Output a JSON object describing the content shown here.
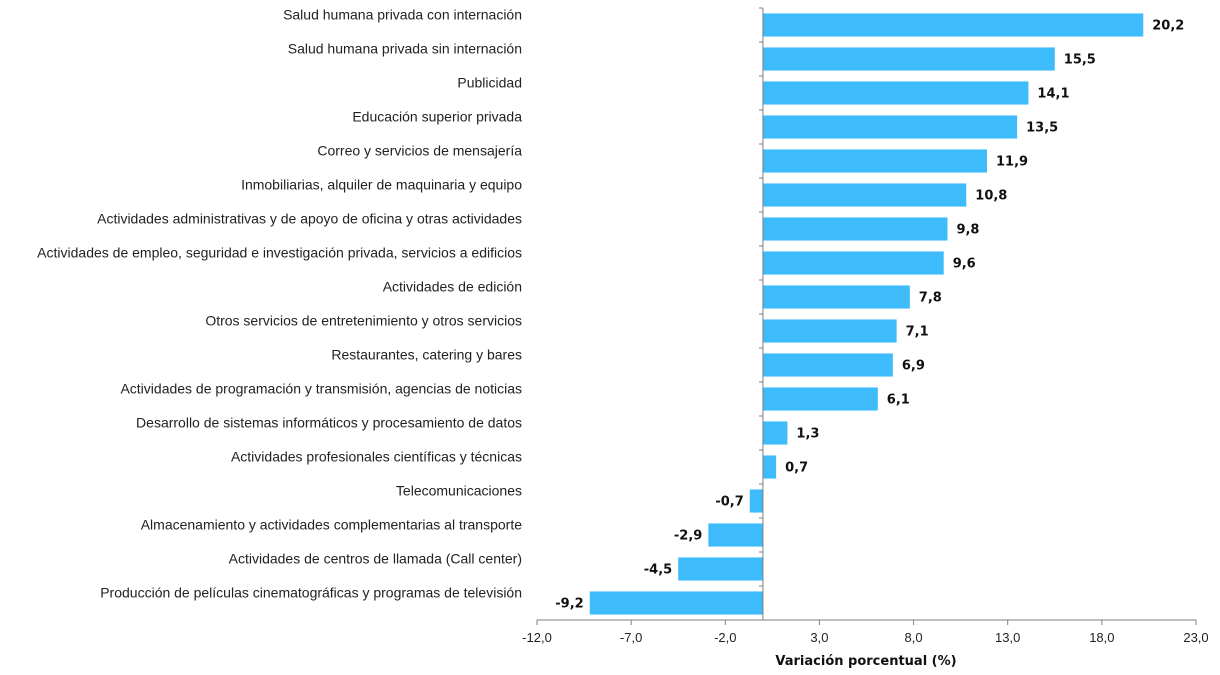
{
  "chart_data": {
    "type": "bar",
    "orientation": "horizontal",
    "categories": [
      "Salud humana privada con internación",
      "Salud humana privada sin internación",
      "Publicidad",
      "Educación superior privada",
      "Correo y servicios de mensajería",
      "Inmobiliarias, alquiler de maquinaria y equipo",
      "Actividades administrativas y de apoyo de oficina y otras actividades",
      "Actividades de empleo, seguridad e investigación privada, servicios a edificios",
      "Actividades de edición",
      "Otros servicios de entretenimiento y otros servicios",
      "Restaurantes, catering y bares",
      "Actividades de programación y transmisión,  agencias de noticias",
      "Desarrollo de sistemas informáticos y procesamiento de datos",
      "Actividades profesionales científicas y técnicas",
      "Telecomunicaciones",
      "Almacenamiento y actividades complementarias al transporte",
      "Actividades de centros de llamada (Call center)",
      "Producción de películas cinematográficas y programas de televisión"
    ],
    "values": [
      20.2,
      15.5,
      14.1,
      13.5,
      11.9,
      10.8,
      9.8,
      9.6,
      7.8,
      7.1,
      6.9,
      6.1,
      1.3,
      0.7,
      -0.7,
      -2.9,
      -4.5,
      -9.2
    ],
    "value_labels": [
      "20,2",
      "15,5",
      "14,1",
      "13,5",
      "11,9",
      "10,8",
      "9,8",
      "9,6",
      "7,8",
      "7,1",
      "6,9",
      "6,1",
      "1,3",
      "0,7",
      "-0,7",
      "-2,9",
      "-4,5",
      "-9,2"
    ],
    "xlim": [
      -12,
      23
    ],
    "xticks": [
      -12,
      -7,
      -2,
      3,
      8,
      13,
      18,
      23
    ],
    "xtick_labels": [
      "-12,0",
      "-7,0",
      "-2,0",
      "3,0",
      "8,0",
      "13,0",
      "18,0",
      "23,0"
    ],
    "xlabel": "Variación porcentual (%)",
    "title": "",
    "grid": false,
    "legend": "none",
    "bar_color": "#3DBBFA",
    "axis_color": "#7F7F7F"
  }
}
